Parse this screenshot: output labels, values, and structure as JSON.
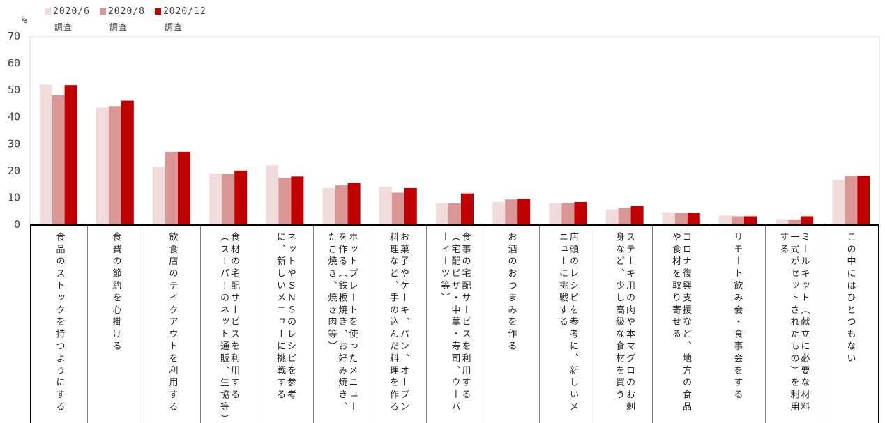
{
  "unit_label": "%",
  "chart_data": {
    "type": "bar",
    "ylim": [
      0,
      70
    ],
    "yticks": [
      0,
      10,
      20,
      30,
      40,
      50,
      60,
      70
    ],
    "grid": false,
    "legend_position": "top-left",
    "categories": [
      "食品のストックを持つようにする",
      "食費の節約を心掛ける",
      "飲食店のテイクアウトを利用する",
      "食材の宅配サービスを利用する（スーパーのネット通販、生協等）",
      "ネットやＳＮＳのレシピを参考に、新しいメニューに挑戦する",
      "ホットプレートを使ったメニューを作る（鉄板焼き、お好み焼き、たこ焼き、焼き肉等）",
      "お菓子やケーキ、パン、オーブン料理など、手の込んだ料理を作る",
      "食事の宅配サービスを利用する（宅配ピザ・中華・寿司、ウーバーイーツ等）",
      "お酒のおつまみを作る",
      "店頭のレシピを参考に、新しいメニューに挑戦する",
      "ステーキ用の肉や本マグロのお刺身など、少し高級な食材を買う",
      "コロナ復興支援など、地方の食品や食材を取り寄せる",
      "リモート飲み会・食事会をする",
      "ミールキット（献立に必要な材料一式がセットされたもの）を利用する",
      "この中にはひとつもない"
    ],
    "series": [
      {
        "name": "2020/6",
        "sub": "調査",
        "color": "#f2dcdb",
        "values": [
          52,
          43.5,
          21.5,
          19,
          22,
          13.5,
          14,
          7.8,
          8.3,
          7.8,
          5.5,
          4.5,
          3.3,
          2,
          16.5
        ]
      },
      {
        "name": "2020/8",
        "sub": "調査",
        "color": "#d99694",
        "values": [
          48,
          44,
          27,
          18.8,
          17.3,
          14.5,
          11.8,
          7.8,
          9.3,
          7.8,
          6,
          4.3,
          3,
          1.8,
          18
        ]
      },
      {
        "name": "2020/12",
        "sub": "調査",
        "color": "#c00000",
        "values": [
          51.8,
          46,
          27,
          20,
          17.8,
          15.5,
          13.5,
          11.5,
          9.5,
          8.3,
          6.8,
          4.3,
          3,
          3,
          18
        ]
      }
    ]
  }
}
